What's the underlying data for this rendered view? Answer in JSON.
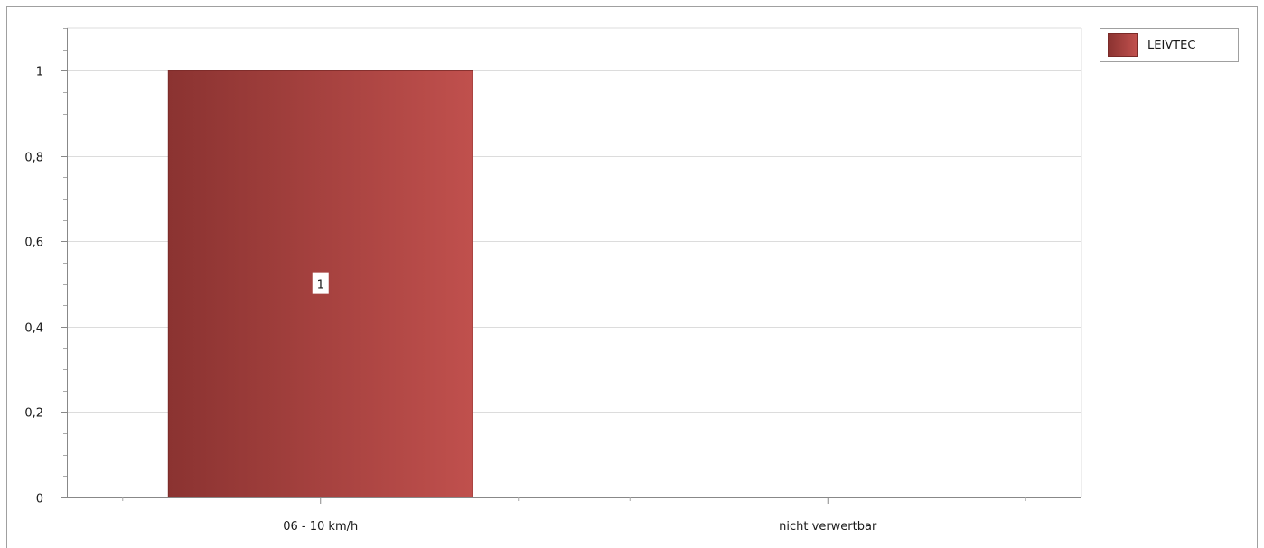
{
  "chart_data": {
    "type": "bar",
    "categories": [
      "06 - 10 km/h",
      "nicht verwertbar"
    ],
    "series": [
      {
        "name": "LEIVTEC",
        "values": [
          1,
          null
        ],
        "color_dark": "#8b3331",
        "color_light": "#c0504d"
      }
    ],
    "data_labels": [
      "1",
      ""
    ],
    "ylim": [
      0,
      1.1
    ],
    "yticks": [
      "0",
      "0,2",
      "0,4",
      "0,6",
      "0,8",
      "1"
    ],
    "ytick_values": [
      0,
      0.2,
      0.4,
      0.6,
      0.8,
      1
    ],
    "grid": true,
    "legend_position": "top-right"
  }
}
